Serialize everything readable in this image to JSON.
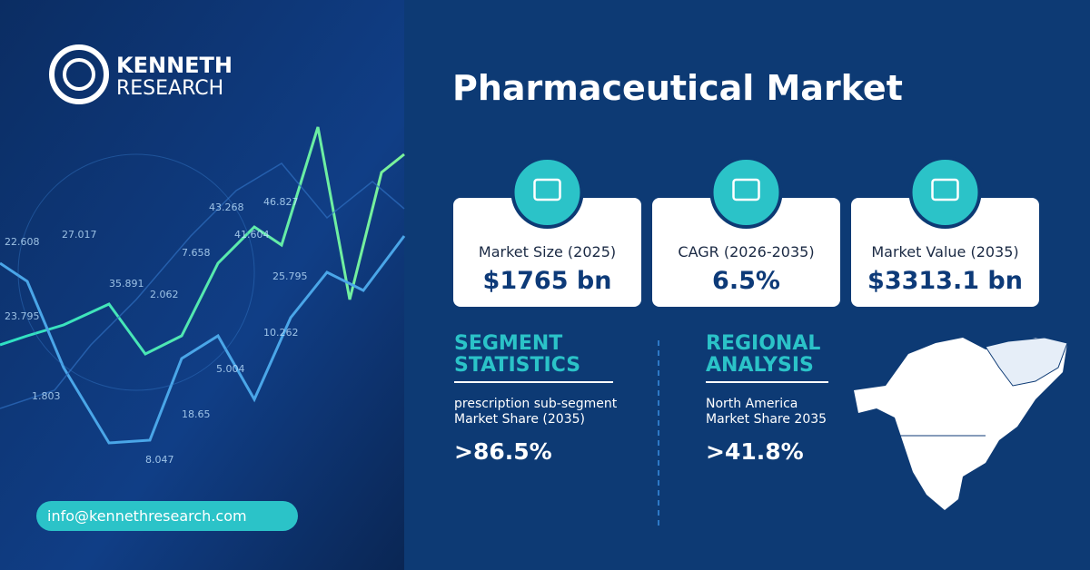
{
  "brand": {
    "line1": "KENNETH",
    "line2": "RESEARCH"
  },
  "title": "Pharmaceutical Market",
  "cards": [
    {
      "label": "Market Size (2025)",
      "value": "$1765 bn"
    },
    {
      "label": "CAGR (2026-2035)",
      "value": "6.5%"
    },
    {
      "label": "Market Value  (2035)",
      "value": "$3313.1 bn"
    }
  ],
  "segment": {
    "heading": [
      "SEGMENT",
      "STATISTICS"
    ],
    "description": [
      "prescription sub-segment",
      "Market Share (2035)"
    ],
    "value": ">86.5%"
  },
  "regional": {
    "heading": [
      "REGIONAL",
      "ANALYSIS"
    ],
    "description": [
      "North America",
      "Market Share 2035"
    ],
    "value": ">41.8%"
  },
  "contact": "info@kennethresearch.com",
  "background_labels": [
    "22.608",
    "27.017",
    "23.795",
    "35.891",
    "1.803",
    "2.062",
    "7.658",
    "43.268",
    "41.604",
    "46.827",
    "25.795",
    "18.65",
    "8.047",
    "5.004",
    "10.262"
  ]
}
